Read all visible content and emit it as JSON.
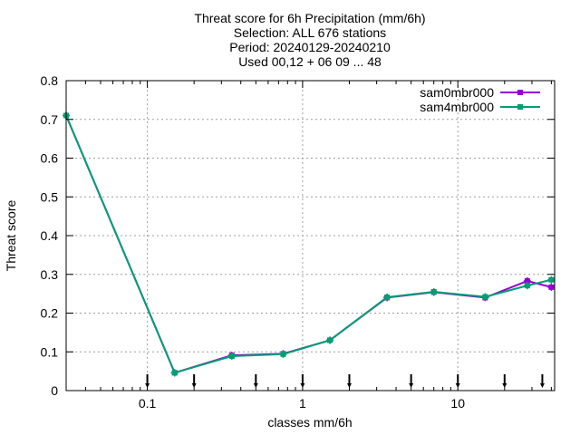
{
  "chart_data": {
    "type": "line",
    "title_lines": [
      "Threat score  for 6h Precipitation (mm/6h)",
      "Selection: ALL    676 stations",
      "Period: 20240129-20240210",
      "Used 00,12 + 06 09 ... 48"
    ],
    "xlabel": "classes mm/6h",
    "ylabel": "Threat score",
    "x_scale": "log",
    "xlim": [
      0.03,
      42
    ],
    "ylim": [
      0,
      0.8
    ],
    "x_ticks": [
      0.1,
      1,
      10
    ],
    "x_tick_labels": [
      "0.1",
      "1",
      "10"
    ],
    "y_ticks": [
      0,
      0.1,
      0.2,
      0.3,
      0.4,
      0.5,
      0.6,
      0.7,
      0.8
    ],
    "y_tick_labels": [
      "0",
      "0.1",
      "0.2",
      "0.3",
      "0.4",
      "0.5",
      "0.6",
      "0.7",
      "0.8"
    ],
    "grid": true,
    "legend_position": "top-right",
    "threshold_markers": [
      0.1,
      0.2,
      0.5,
      1,
      2,
      5,
      10,
      20,
      35
    ],
    "series": [
      {
        "name": "sam0mbr000",
        "color": "#9400d3",
        "x": [
          0.03,
          0.15,
          0.35,
          0.75,
          1.5,
          3.5,
          7,
          15,
          28,
          40
        ],
        "y": [
          0.71,
          0.046,
          0.091,
          0.095,
          0.13,
          0.24,
          0.254,
          0.24,
          0.283,
          0.267
        ]
      },
      {
        "name": "sam4mbr000",
        "color": "#009e73",
        "x": [
          0.03,
          0.15,
          0.35,
          0.75,
          1.5,
          3.5,
          7,
          15,
          28,
          40
        ],
        "y": [
          0.71,
          0.046,
          0.089,
          0.094,
          0.13,
          0.241,
          0.255,
          0.242,
          0.271,
          0.286
        ]
      }
    ]
  }
}
